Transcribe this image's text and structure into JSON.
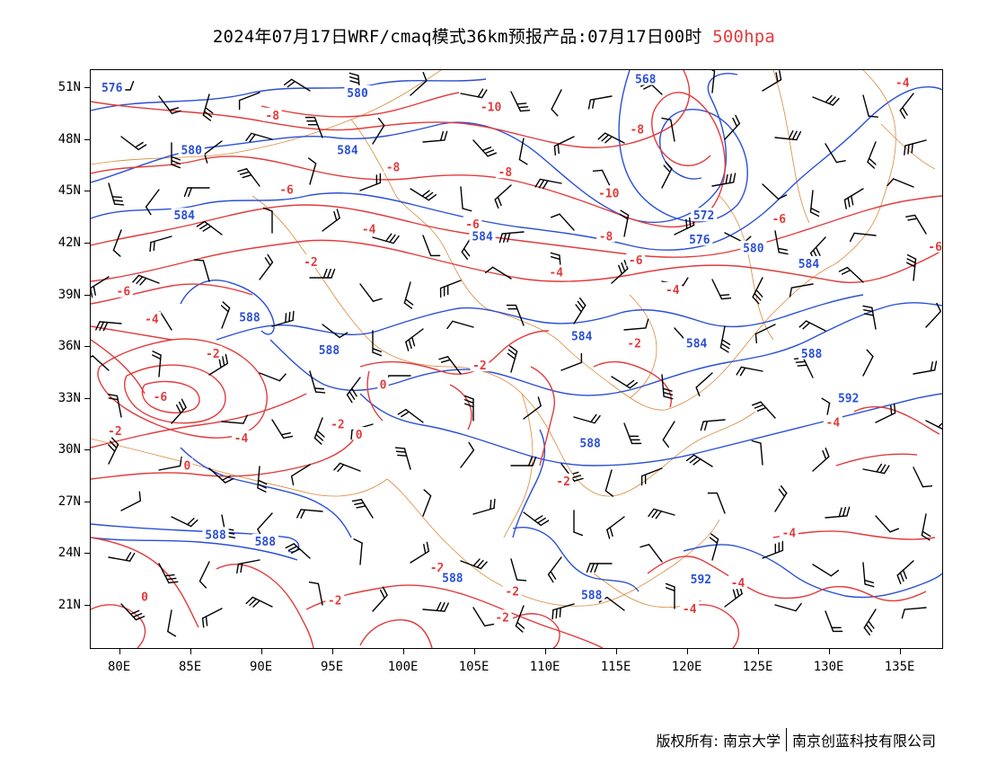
{
  "title": {
    "main": "2024年07月17日WRF/cmaq模式36km预报产品:07月17日00时",
    "level": "500hpa"
  },
  "axes": {
    "lat_labels": [
      "51N",
      "48N",
      "45N",
      "42N",
      "39N",
      "36N",
      "33N",
      "30N",
      "27N",
      "24N",
      "21N"
    ],
    "lat_values": [
      51,
      48,
      45,
      42,
      39,
      36,
      33,
      30,
      27,
      24,
      21
    ],
    "lon_labels": [
      "80E",
      "85E",
      "90E",
      "95E",
      "100E",
      "105E",
      "110E",
      "115E",
      "120E",
      "125E",
      "130E",
      "135E"
    ],
    "lon_values": [
      80,
      85,
      90,
      95,
      100,
      105,
      110,
      115,
      120,
      125,
      130,
      135
    ],
    "lon_range": [
      78,
      138
    ],
    "lat_range": [
      18.5,
      52
    ]
  },
  "colors": {
    "temperature_contour": "#e23b3b",
    "geopotential_contour": "#2a4fd6",
    "boundary": "#d98a3a",
    "wind_barb": "#000000"
  },
  "temperature_labels": [
    {
      "text": "-8",
      "lon": 90.8,
      "lat": 49.4
    },
    {
      "text": "-10",
      "lon": 106.2,
      "lat": 49.9
    },
    {
      "text": "-8",
      "lon": 116.5,
      "lat": 48.6
    },
    {
      "text": "-8",
      "lon": 99.3,
      "lat": 46.4
    },
    {
      "text": "-8",
      "lon": 107.2,
      "lat": 46.1
    },
    {
      "text": "-10",
      "lon": 114.5,
      "lat": 44.9
    },
    {
      "text": "-6",
      "lon": 91.8,
      "lat": 45.1
    },
    {
      "text": "-6",
      "lon": 104.9,
      "lat": 43.1
    },
    {
      "text": "-4",
      "lon": 97.6,
      "lat": 42.8
    },
    {
      "text": "-8",
      "lon": 114.3,
      "lat": 42.4
    },
    {
      "text": "-6",
      "lon": 116.4,
      "lat": 41.0
    },
    {
      "text": "-6",
      "lon": 126.5,
      "lat": 43.4
    },
    {
      "text": "-4",
      "lon": 135.2,
      "lat": 51.3
    },
    {
      "text": "-6",
      "lon": 137.5,
      "lat": 41.8
    },
    {
      "text": "-2",
      "lon": 93.5,
      "lat": 40.9
    },
    {
      "text": "-4",
      "lon": 110.8,
      "lat": 40.3
    },
    {
      "text": "-4",
      "lon": 119.0,
      "lat": 39.3
    },
    {
      "text": "-6",
      "lon": 80.3,
      "lat": 39.2
    },
    {
      "text": "-4",
      "lon": 82.3,
      "lat": 37.6
    },
    {
      "text": "-2",
      "lon": 86.6,
      "lat": 35.6
    },
    {
      "text": "-2",
      "lon": 105.4,
      "lat": 34.9
    },
    {
      "text": "-2",
      "lon": 116.3,
      "lat": 36.2
    },
    {
      "text": "0",
      "lon": 98.6,
      "lat": 33.8
    },
    {
      "text": "-6",
      "lon": 82.9,
      "lat": 33.1
    },
    {
      "text": "-2",
      "lon": 95.4,
      "lat": 31.5
    },
    {
      "text": "0",
      "lon": 96.9,
      "lat": 30.9
    },
    {
      "text": "-4",
      "lon": 88.6,
      "lat": 30.7
    },
    {
      "text": "-2",
      "lon": 79.7,
      "lat": 31.1
    },
    {
      "text": "0",
      "lon": 84.8,
      "lat": 29.1
    },
    {
      "text": "-2",
      "lon": 111.3,
      "lat": 28.2
    },
    {
      "text": "-2",
      "lon": 107.7,
      "lat": 21.8
    },
    {
      "text": "-2",
      "lon": 102.4,
      "lat": 23.2
    },
    {
      "text": "-2",
      "lon": 95.2,
      "lat": 21.3
    },
    {
      "text": "0",
      "lon": 81.8,
      "lat": 21.5
    },
    {
      "text": "-2",
      "lon": 107.0,
      "lat": 20.3
    },
    {
      "text": "-4",
      "lon": 123.6,
      "lat": 22.3
    },
    {
      "text": "-4",
      "lon": 120.2,
      "lat": 20.8
    },
    {
      "text": "-4",
      "lon": 127.2,
      "lat": 25.2
    },
    {
      "text": "-4",
      "lon": 130.3,
      "lat": 31.6
    }
  ],
  "height_labels": [
    {
      "text": "576",
      "lon": 79.5,
      "lat": 51.0
    },
    {
      "text": "580",
      "lon": 96.8,
      "lat": 50.7
    },
    {
      "text": "568",
      "lon": 117.1,
      "lat": 51.5
    },
    {
      "text": "580",
      "lon": 85.1,
      "lat": 47.4
    },
    {
      "text": "584",
      "lon": 96.1,
      "lat": 47.4
    },
    {
      "text": "584",
      "lon": 84.6,
      "lat": 43.6
    },
    {
      "text": "584",
      "lon": 105.6,
      "lat": 42.4
    },
    {
      "text": "572",
      "lon": 121.2,
      "lat": 43.6
    },
    {
      "text": "576",
      "lon": 120.9,
      "lat": 42.2
    },
    {
      "text": "580",
      "lon": 124.7,
      "lat": 41.7
    },
    {
      "text": "584",
      "lon": 128.6,
      "lat": 40.8
    },
    {
      "text": "588",
      "lon": 89.2,
      "lat": 37.7
    },
    {
      "text": "588",
      "lon": 94.8,
      "lat": 35.8
    },
    {
      "text": "584",
      "lon": 112.6,
      "lat": 36.6
    },
    {
      "text": "584",
      "lon": 120.7,
      "lat": 36.2
    },
    {
      "text": "588",
      "lon": 128.8,
      "lat": 35.6
    },
    {
      "text": "592",
      "lon": 131.4,
      "lat": 33.0
    },
    {
      "text": "588",
      "lon": 113.2,
      "lat": 30.4
    },
    {
      "text": "588",
      "lon": 86.8,
      "lat": 25.1
    },
    {
      "text": "588",
      "lon": 90.3,
      "lat": 24.7
    },
    {
      "text": "588",
      "lon": 103.5,
      "lat": 22.6
    },
    {
      "text": "588",
      "lon": 113.3,
      "lat": 21.6
    },
    {
      "text": "592",
      "lon": 121.0,
      "lat": 22.5
    }
  ],
  "copyright": {
    "left": "版权所有: 南京大学",
    "right": "南京创蓝科技有限公司"
  }
}
